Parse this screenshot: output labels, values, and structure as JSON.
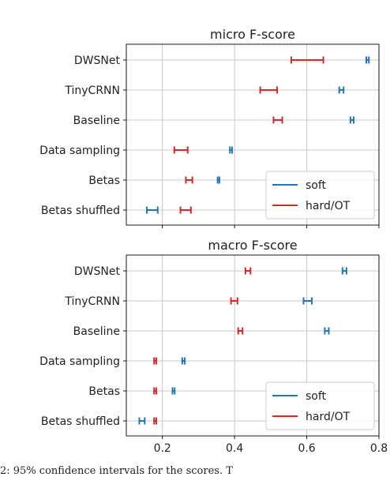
{
  "chart_data": [
    {
      "type": "errorbar",
      "title": "micro F-score",
      "categories": [
        "DWSNet",
        "TinyCRNN",
        "Baseline",
        "Data sampling",
        "Betas",
        "Betas shuffled"
      ],
      "xlim": [
        0.1,
        0.8
      ],
      "xticks": [
        0.2,
        0.4,
        0.6,
        0.8
      ],
      "xtick_labels": [
        "0.2",
        "0.4",
        "0.6",
        "0.8"
      ],
      "show_xtick_labels": false,
      "grid": true,
      "legend_position": "lower-right",
      "series": [
        {
          "name": "soft",
          "color": "#1f77b4",
          "intervals": [
            [
              0.765,
              0.772
            ],
            [
              0.69,
              0.702
            ],
            [
              0.721,
              0.73
            ],
            [
              0.387,
              0.393
            ],
            [
              0.353,
              0.358
            ],
            [
              0.157,
              0.187
            ]
          ]
        },
        {
          "name": "hard/OT",
          "color": "#d62728",
          "intervals": [
            [
              0.557,
              0.646
            ],
            [
              0.471,
              0.518
            ],
            [
              0.508,
              0.532
            ],
            [
              0.233,
              0.27
            ],
            [
              0.265,
              0.283
            ],
            [
              0.25,
              0.279
            ]
          ]
        }
      ]
    },
    {
      "type": "errorbar",
      "title": "macro F-score",
      "categories": [
        "DWSNet",
        "TinyCRNN",
        "Baseline",
        "Data sampling",
        "Betas",
        "Betas shuffled"
      ],
      "xlim": [
        0.1,
        0.8
      ],
      "xticks": [
        0.2,
        0.4,
        0.6,
        0.8
      ],
      "xtick_labels": [
        "0.2",
        "0.4",
        "0.6",
        "0.8"
      ],
      "show_xtick_labels": true,
      "grid": true,
      "legend_position": "lower-right",
      "series": [
        {
          "name": "soft",
          "color": "#1f77b4",
          "intervals": [
            [
              0.699,
              0.71
            ],
            [
              0.591,
              0.614
            ],
            [
              0.65,
              0.661
            ],
            [
              0.255,
              0.262
            ],
            [
              0.228,
              0.234
            ],
            [
              0.136,
              0.151
            ]
          ]
        },
        {
          "name": "hard/OT",
          "color": "#d62728",
          "intervals": [
            [
              0.43,
              0.444
            ],
            [
              0.39,
              0.408
            ],
            [
              0.41,
              0.422
            ],
            [
              0.177,
              0.183
            ],
            [
              0.177,
              0.183
            ],
            [
              0.177,
              0.183
            ]
          ]
        }
      ]
    }
  ],
  "caption": "2: 95% confidence intervals for the scores. T"
}
